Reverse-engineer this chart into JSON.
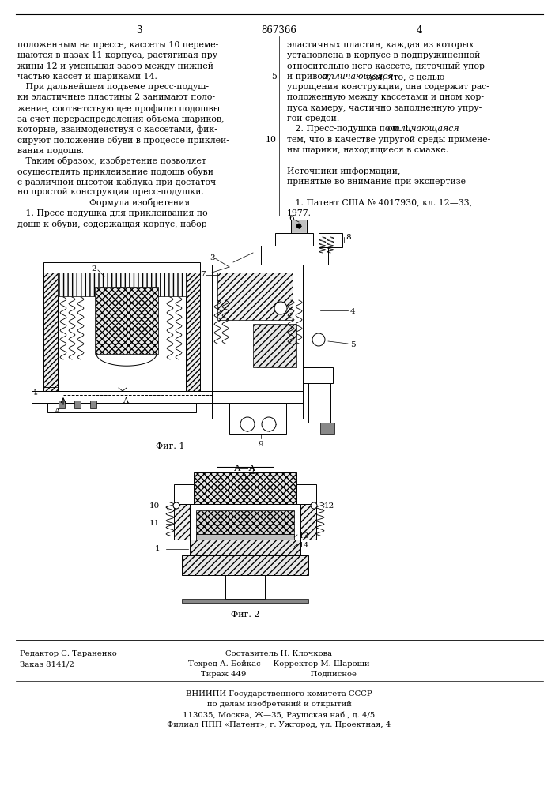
{
  "page_number_left": "3",
  "page_number_center": "867366",
  "page_number_right": "4",
  "col1_text": [
    "положенным на прессе, кассеты 10 переме-",
    "щаются в пазах 11 корпуса, растягивая пру-",
    "жины 12 и уменьшая зазор между нижней",
    "частью кассет и шариками 14.",
    "   При дальнейшем подъеме пресс-подуш-",
    "ки эластичные пластины 2 занимают поло-",
    "жение, соответствующее профилю подошвы",
    "за счет перераспределения объема шариков,",
    "которые, взаимодействуя с кассетами, фик-",
    "сируют положение обуви в процессе приклей-",
    "вания подошв.",
    "   Таким образом, изобретение позволяет",
    "осуществлять приклеивание подошв обуви",
    "с различной высотой каблука при достаточ-",
    "но простой конструкции пресс-подушки.",
    "Формула изобретения",
    "   1. Пресс-подушка для приклеивания по-",
    "дошв к обуви, содержащая корпус, набор"
  ],
  "col2_lines": [
    {
      "text": "эластичных пластин, каждая из которых",
      "no": null,
      "italic_word": null
    },
    {
      "text": "установлена в корпусе в подпружиненной",
      "no": null,
      "italic_word": null
    },
    {
      "text": "относительно него кассете, пяточный упор",
      "no": null,
      "italic_word": null
    },
    {
      "text": "и привод, |отличающаяся| тем, что, с целью",
      "no": "5",
      "italic_word": "отличающаяся"
    },
    {
      "text": "упрощения конструкции, она содержит рас-",
      "no": null,
      "italic_word": null
    },
    {
      "text": "положенную между кассетами и дном кор-",
      "no": null,
      "italic_word": null
    },
    {
      "text": "пуса камеру, частично заполненную упру-",
      "no": null,
      "italic_word": null
    },
    {
      "text": "гой средой.",
      "no": null,
      "italic_word": null
    },
    {
      "text": "   2. Пресс-подушка по п. 1, |отличающаяся|",
      "no": null,
      "italic_word": "отличающаяся"
    },
    {
      "text": "тем, что в качестве упругой среды примене-",
      "no": "10",
      "italic_word": null
    },
    {
      "text": "ны шарики, находящиеся в смазке.",
      "no": null,
      "italic_word": null
    },
    {
      "text": "",
      "no": null,
      "italic_word": null
    },
    {
      "text": "Источники информации,",
      "no": null,
      "italic_word": null
    },
    {
      "text": "принятые во внимание при экспертизе",
      "no": null,
      "italic_word": null
    },
    {
      "text": "",
      "no": null,
      "italic_word": null
    },
    {
      "text": "   1. Патент США № 4017930, кл. 12—33,",
      "no": null,
      "italic_word": null
    },
    {
      "text": "1977.",
      "no": null,
      "italic_word": null
    }
  ],
  "fig_caption1": "Фиг. 1",
  "fig_caption2": "Фиг. 2",
  "bottom_left_text": [
    "Редактор С. Тараненко",
    "Заказ 8141/2"
  ],
  "bottom_center_text": [
    "Составитель Н. Клочкова",
    "Техред А. Бойкас     Корректор М. Шароши",
    "Тираж 449                          Подписное"
  ],
  "bottom_org_text": [
    "ВНИИПИ Государственного комитета СССР",
    "по делам изобретений и открытий",
    "113035, Москва, Ж—35, Раушская наб., д. 4/5",
    "Филиал ППП «Патент», г. Ужгород, ул. Проектная, 4"
  ],
  "bg_color": "#ffffff"
}
